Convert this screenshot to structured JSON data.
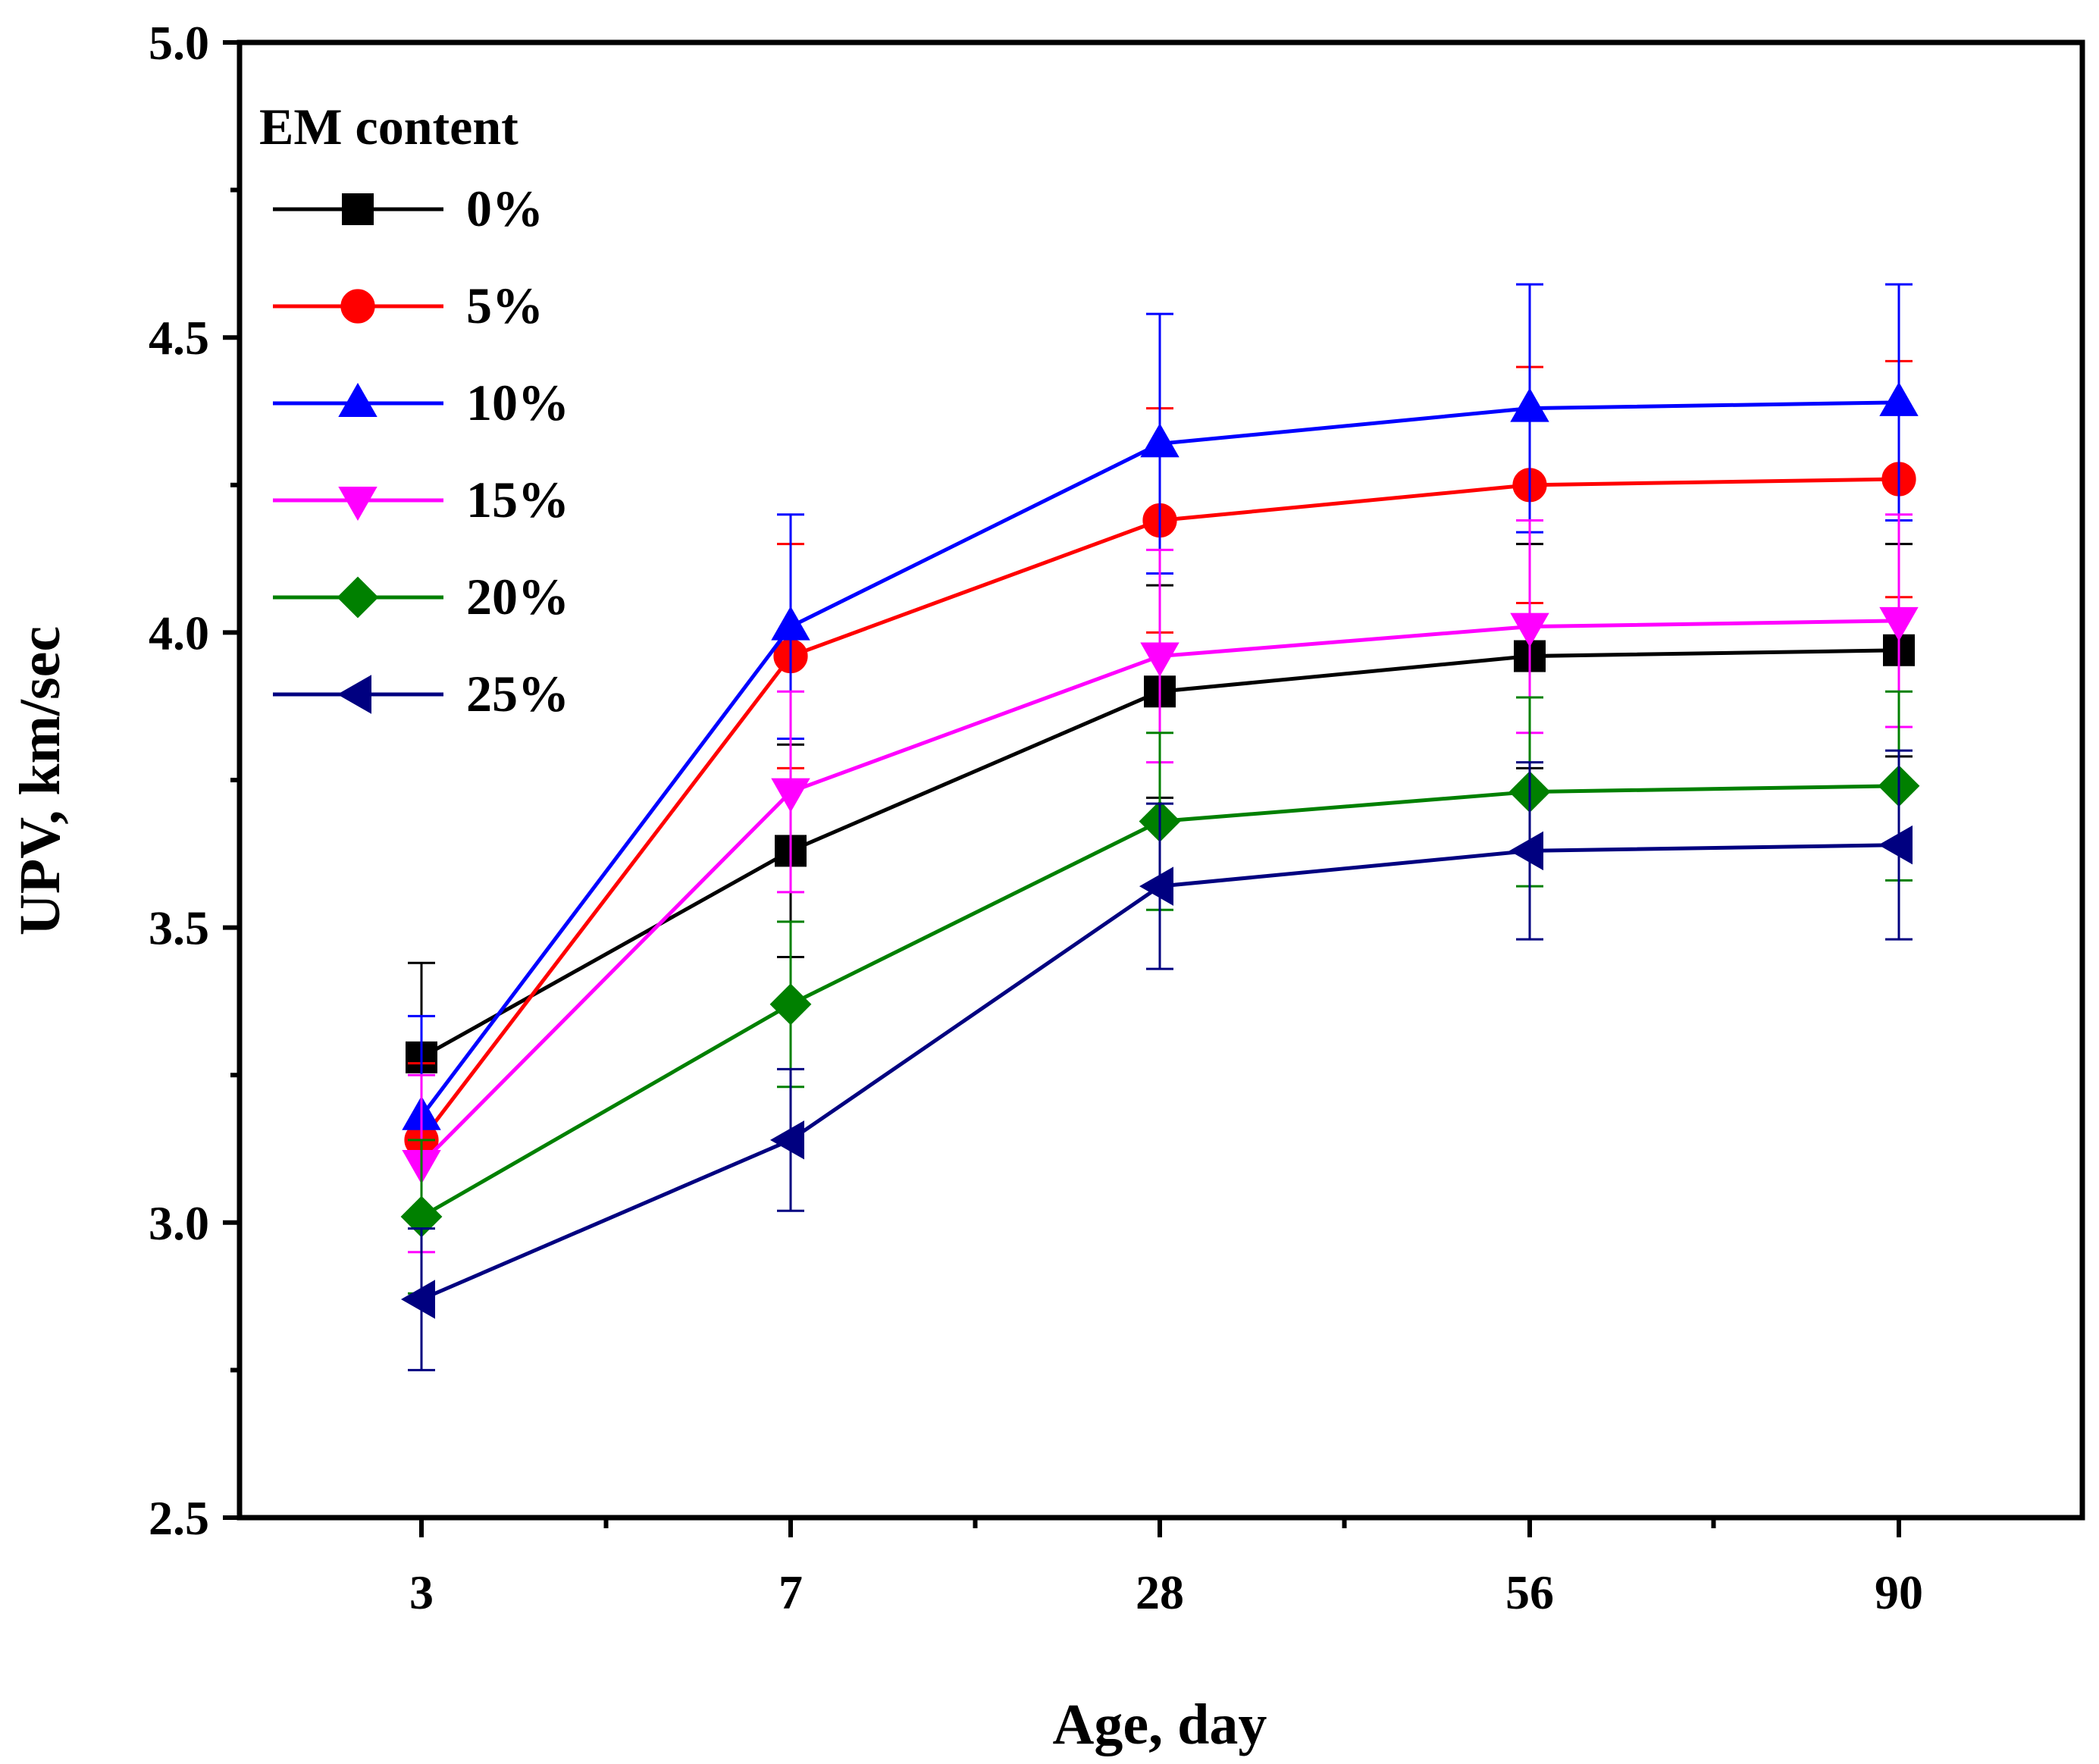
{
  "chart_data": {
    "type": "line",
    "title": "",
    "xlabel": "Age, day",
    "ylabel": "UPV, km/sec",
    "categories": [
      "3",
      "7",
      "28",
      "56",
      "90"
    ],
    "ylim": [
      2.5,
      5.0
    ],
    "yticks": [
      "2.5",
      "3.0",
      "3.5",
      "4.0",
      "4.5",
      "5.0"
    ],
    "grid": false,
    "legend": {
      "title": "EM content",
      "placement": "top-left"
    },
    "series": [
      {
        "name": "0%",
        "color": "#000000",
        "marker": "square",
        "values": [
          3.28,
          3.63,
          3.9,
          3.96,
          3.97
        ],
        "errors": [
          0.16,
          0.18,
          0.18,
          0.19,
          0.18
        ]
      },
      {
        "name": "5%",
        "color": "#ff0000",
        "marker": "circle",
        "values": [
          3.14,
          3.96,
          4.19,
          4.25,
          4.26
        ],
        "errors": [
          0.13,
          0.19,
          0.19,
          0.2,
          0.2
        ]
      },
      {
        "name": "10%",
        "color": "#0000ff",
        "marker": "triangle-up",
        "values": [
          3.18,
          4.01,
          4.32,
          4.38,
          4.39
        ],
        "errors": [
          0.17,
          0.19,
          0.22,
          0.21,
          0.2
        ]
      },
      {
        "name": "15%",
        "color": "#ff00ff",
        "marker": "triangle-down",
        "values": [
          3.1,
          3.73,
          3.96,
          4.01,
          4.02
        ],
        "errors": [
          0.15,
          0.17,
          0.18,
          0.18,
          0.18
        ]
      },
      {
        "name": "20%",
        "color": "#008000",
        "marker": "diamond",
        "values": [
          3.01,
          3.37,
          3.68,
          3.73,
          3.74
        ],
        "errors": [
          0.13,
          0.14,
          0.15,
          0.16,
          0.16
        ]
      },
      {
        "name": "25%",
        "color": "#000080",
        "marker": "triangle-left",
        "values": [
          2.87,
          3.14,
          3.57,
          3.63,
          3.64
        ],
        "errors": [
          0.12,
          0.12,
          0.14,
          0.15,
          0.16
        ]
      }
    ]
  }
}
